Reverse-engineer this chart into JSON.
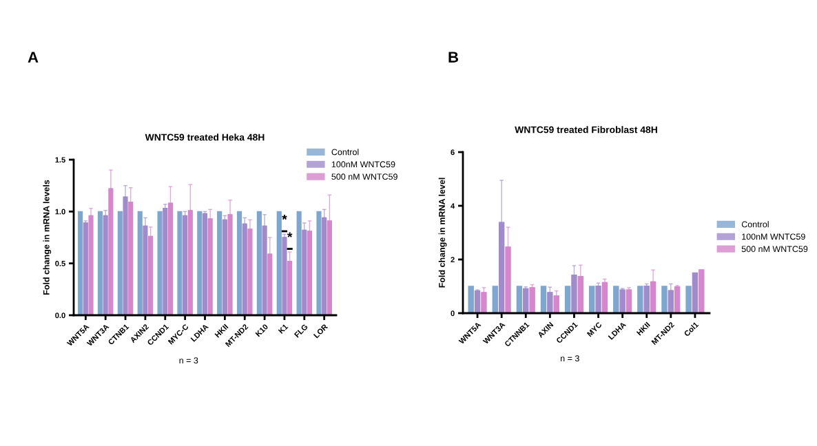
{
  "chart_data": [
    {
      "type": "bar",
      "title": "WNTC59 treated Heka 48H",
      "ylabel": "Fold change in mRNA levels",
      "categories": [
        "WNT5A",
        "WNT3A",
        "CTNB1",
        "AXIN2",
        "CCND1",
        "MYC-C",
        "LDHA",
        "HKII",
        "MT-ND2",
        "K10",
        "K1",
        "FLG",
        "LOR"
      ],
      "series": [
        {
          "name": "Control",
          "color": "#7fa6cf",
          "values": [
            1,
            1,
            1,
            1,
            1,
            1,
            1,
            1,
            1,
            1,
            1,
            1,
            1
          ]
        },
        {
          "name": "100nM WNTC59",
          "color": "#a08bcb",
          "values": [
            0.89,
            0.96,
            1.14,
            0.86,
            1.03,
            0.96,
            0.98,
            0.92,
            0.88,
            0.86,
            0.75,
            0.82,
            0.94
          ],
          "errors": [
            [
              0.89,
              0.91
            ],
            [
              0.96,
              1.01
            ],
            [
              1.14,
              1.25
            ],
            [
              0.86,
              0.94
            ],
            [
              1.03,
              1.07
            ],
            [
              0.96,
              1.0
            ],
            [
              0.98,
              1.0
            ],
            [
              0.92,
              0.96
            ],
            [
              0.88,
              0.94
            ],
            [
              0.86,
              0.97
            ],
            [
              0.75,
              0.78
            ],
            [
              0.82,
              0.89
            ],
            [
              0.94,
              1.02
            ]
          ]
        },
        {
          "name": "500 nM WNTC59",
          "color": "#d586cc",
          "values": [
            0.96,
            1.22,
            1.09,
            0.76,
            1.08,
            1.01,
            0.93,
            0.97,
            0.83,
            0.59,
            0.52,
            0.81,
            0.91
          ],
          "errors": [
            [
              0.96,
              1.03
            ],
            [
              1.22,
              1.4
            ],
            [
              1.09,
              1.23
            ],
            [
              0.76,
              0.85
            ],
            [
              1.08,
              1.24
            ],
            [
              1.01,
              1.26
            ],
            [
              0.93,
              1.02
            ],
            [
              0.97,
              1.11
            ],
            [
              0.83,
              0.92
            ],
            [
              0.59,
              0.75
            ],
            [
              0.52,
              0.61
            ],
            [
              0.81,
              0.91
            ],
            [
              0.91,
              1.16
            ]
          ]
        }
      ],
      "ylim": [
        0,
        1.5
      ],
      "yticks": [
        {
          "value": 0,
          "label": "0.0"
        },
        0.5,
        {
          "value": 1,
          "label": "1.0"
        },
        1.5
      ],
      "legend": "top right",
      "grid": false,
      "annotations": [
        "A",
        "n = 3",
        {
          "text": "*",
          "x": "K1",
          "y": 0.78
        },
        {
          "text": "*",
          "x": "K1",
          "y": 0.61
        }
      ]
    },
    {
      "type": "bar",
      "title": "WNTC59 treated Fibroblast 48H",
      "ylabel": "Fold change in mRNA level",
      "categories": [
        "WNT5A",
        "WNT3A",
        "CTNNB1",
        "AXIN",
        "CCND1",
        "MYC",
        "LDHA",
        "HKII",
        "MT-ND2",
        "Col1"
      ],
      "series": [
        {
          "name": "Control",
          "color": "#7fa6cf",
          "values": [
            1,
            1,
            1,
            1,
            1,
            1,
            1,
            1,
            1,
            1
          ]
        },
        {
          "name": "100nM WNTC59",
          "color": "#a08bcb",
          "values": [
            0.83,
            3.38,
            0.91,
            0.77,
            1.42,
            1.01,
            0.87,
            1.01,
            0.84,
            1.5
          ],
          "errors": [
            [
              0.83,
              0.87
            ],
            [
              3.38,
              4.95
            ],
            [
              0.91,
              0.98
            ],
            [
              0.77,
              0.97
            ],
            [
              1.42,
              1.77
            ],
            [
              1.01,
              1.12
            ],
            [
              0.87,
              0.92
            ],
            [
              1.01,
              1.09
            ],
            [
              0.84,
              1.09
            ],
            null
          ]
        },
        {
          "name": "500 nM WNTC59",
          "color": "#d586cc",
          "values": [
            0.77,
            2.46,
            0.95,
            0.64,
            1.37,
            1.14,
            0.87,
            1.17,
            0.98,
            1.62
          ],
          "errors": [
            [
              0.77,
              0.95
            ],
            [
              2.46,
              3.2
            ],
            [
              0.95,
              1.06
            ],
            [
              0.64,
              0.83
            ],
            [
              1.37,
              1.79
            ],
            [
              1.14,
              1.27
            ],
            [
              0.87,
              0.95
            ],
            [
              1.17,
              1.61
            ],
            [
              0.98,
              1.03
            ],
            null
          ]
        }
      ],
      "ylim": [
        0,
        6
      ],
      "yticks": [
        0,
        2,
        4,
        6
      ],
      "legend": "right",
      "grid": false,
      "annotations": [
        "B",
        "n = 3"
      ]
    }
  ]
}
